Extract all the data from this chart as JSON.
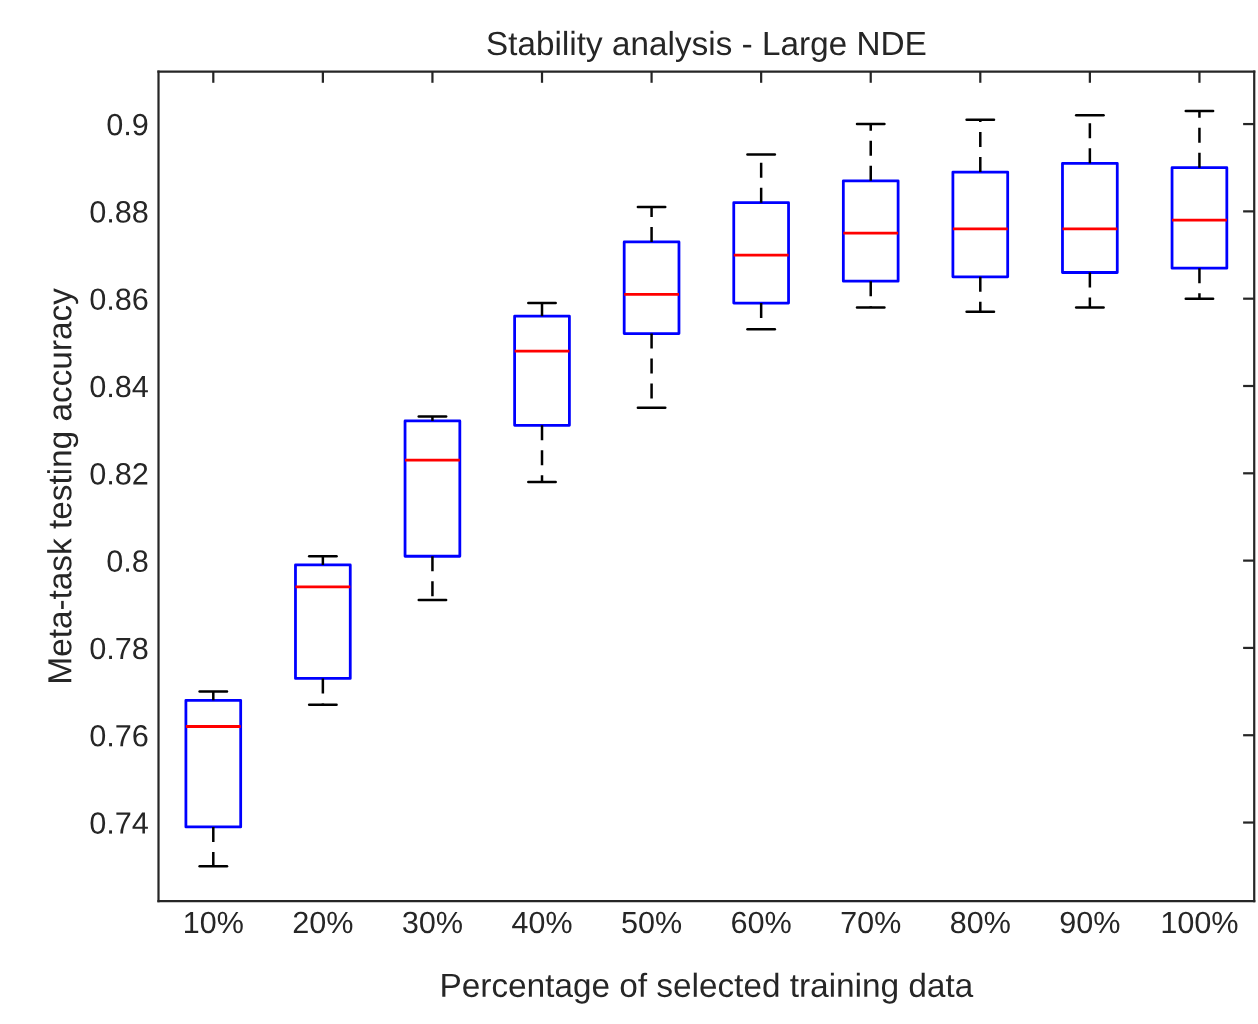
{
  "chart_data": {
    "type": "box",
    "title": "Stability analysis - Large NDE",
    "xlabel": "Percentage of selected training data",
    "ylabel": "Meta-task testing accuracy",
    "categories": [
      "10%",
      "20%",
      "30%",
      "40%",
      "50%",
      "60%",
      "70%",
      "80%",
      "90%",
      "100%"
    ],
    "series": [
      {
        "color": "#0000ff",
        "boxes": [
          {
            "low": 0.73,
            "q1": 0.739,
            "median": 0.762,
            "q3": 0.768,
            "high": 0.77
          },
          {
            "low": 0.767,
            "q1": 0.773,
            "median": 0.794,
            "q3": 0.799,
            "high": 0.801
          },
          {
            "low": 0.791,
            "q1": 0.801,
            "median": 0.823,
            "q3": 0.832,
            "high": 0.833
          },
          {
            "low": 0.818,
            "q1": 0.831,
            "median": 0.848,
            "q3": 0.856,
            "high": 0.859
          },
          {
            "low": 0.835,
            "q1": 0.852,
            "median": 0.861,
            "q3": 0.873,
            "high": 0.881
          },
          {
            "low": 0.853,
            "q1": 0.859,
            "median": 0.87,
            "q3": 0.882,
            "high": 0.893
          },
          {
            "low": 0.858,
            "q1": 0.864,
            "median": 0.875,
            "q3": 0.887,
            "high": 0.9
          },
          {
            "low": 0.857,
            "q1": 0.865,
            "median": 0.876,
            "q3": 0.889,
            "high": 0.901
          },
          {
            "low": 0.858,
            "q1": 0.866,
            "median": 0.876,
            "q3": 0.891,
            "high": 0.902
          },
          {
            "low": 0.86,
            "q1": 0.867,
            "median": 0.878,
            "q3": 0.89,
            "high": 0.903
          }
        ]
      }
    ],
    "ylim": [
      0.722,
      0.912
    ],
    "yticks": [
      0.74,
      0.76,
      0.78,
      0.8,
      0.82,
      0.84,
      0.86,
      0.88,
      {
        "value": 0.9,
        "label": "0.9"
      }
    ],
    "grid": false,
    "legend": false,
    "line_style": "dashed"
  }
}
